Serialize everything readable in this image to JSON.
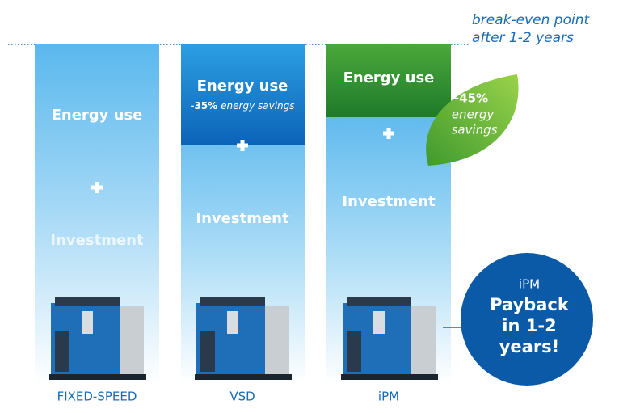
{
  "header": {
    "note": [
      "break-even point",
      "after 1-2 years"
    ]
  },
  "columns": [
    {
      "label": "FIXED-SPEED",
      "energy": "Energy use",
      "investment": "Investment"
    },
    {
      "label": "VSD",
      "energy": "Energy use",
      "savings": {
        "value": "-35%",
        "text": "energy savings"
      },
      "investment": "Investment"
    },
    {
      "label": "iPM",
      "energy": "Energy use",
      "savings": {
        "value": "-45%",
        "text": [
          "energy",
          "savings"
        ]
      },
      "investment": "Investment"
    }
  ],
  "callout": {
    "title": "iPM",
    "lines": [
      "Payback",
      "in 1-2",
      "years!"
    ]
  }
}
